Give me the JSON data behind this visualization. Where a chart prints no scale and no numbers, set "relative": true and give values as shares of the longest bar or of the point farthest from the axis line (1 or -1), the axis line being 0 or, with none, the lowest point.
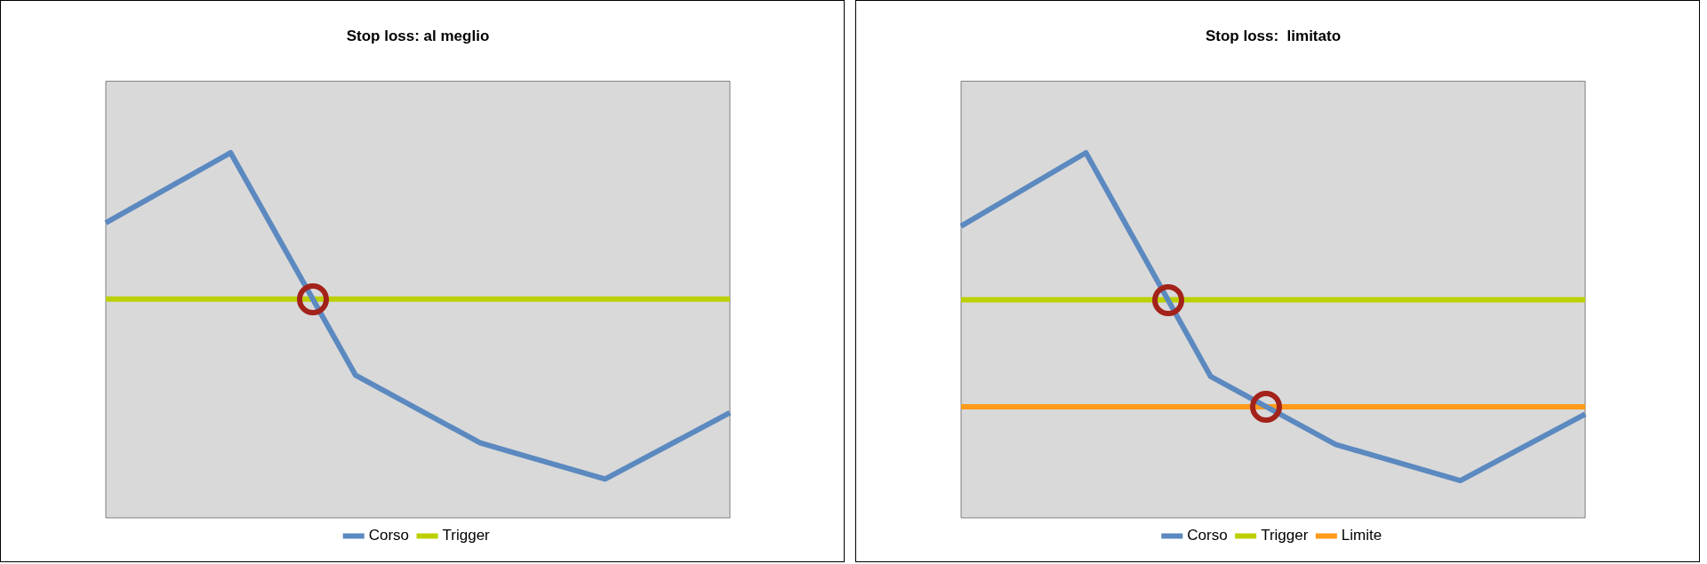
{
  "chart_data": [
    {
      "type": "line",
      "title": "Stop loss: al meglio",
      "relative": true,
      "categories": [
        null,
        null,
        null,
        null,
        null,
        null
      ],
      "series": [
        {
          "name": "Corso",
          "color": "#5b89c0",
          "values": [
            0.808,
            1,
            0.391,
            0.205,
            0.106,
            0.288
          ]
        },
        {
          "name": "Trigger",
          "color": "#bcd000",
          "values": [
            0.599,
            0.599,
            0.599,
            0.599,
            0.599,
            0.599
          ]
        }
      ],
      "legend": "bottom",
      "tick_labels": false,
      "marker": "none"
    },
    {
      "type": "line",
      "title": "Stop loss:  limitato",
      "relative": true,
      "categories": [
        null,
        null,
        null,
        null,
        null,
        null
      ],
      "series": [
        {
          "name": "Corso",
          "color": "#5b89c0",
          "values": [
            0.799,
            1,
            0.387,
            0.201,
            0.102,
            0.284
          ]
        },
        {
          "name": "Trigger",
          "color": "#bcd000",
          "values": [
            0.597,
            0.597,
            0.597,
            0.597,
            0.597,
            0.597
          ]
        },
        {
          "name": "Limite",
          "color": "#ff9a1a",
          "values": [
            0.304,
            0.304,
            0.304,
            0.304,
            0.304,
            0.304
          ]
        }
      ],
      "legend": "bottom",
      "tick_labels": false,
      "marker": "none"
    }
  ]
}
